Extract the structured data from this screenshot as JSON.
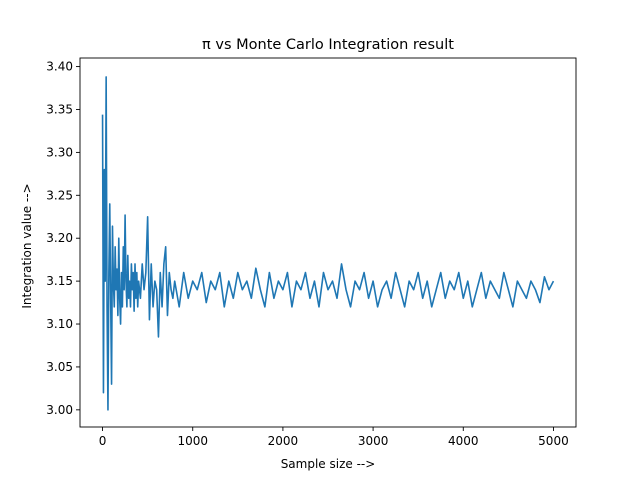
{
  "chart_data": {
    "type": "line",
    "title": "π vs Monte Carlo Integration result",
    "xlabel": "Sample size -->",
    "ylabel": "Integration value -->",
    "xlim": [
      -250,
      5250
    ],
    "ylim": [
      2.98,
      3.41
    ],
    "xticks": [
      0,
      1000,
      2000,
      3000,
      4000,
      5000
    ],
    "xtick_labels": [
      "0",
      "1000",
      "2000",
      "3000",
      "4000",
      "5000"
    ],
    "yticks": [
      3.0,
      3.05,
      3.1,
      3.15,
      3.2,
      3.25,
      3.3,
      3.35,
      3.4
    ],
    "ytick_labels": [
      "3.00",
      "3.05",
      "3.10",
      "3.15",
      "3.20",
      "3.25",
      "3.30",
      "3.35",
      "3.40"
    ],
    "grid": false,
    "legend": "none",
    "colors": {
      "series": "#1f77b4"
    },
    "series": [
      {
        "x": [
          0,
          10,
          20,
          30,
          40,
          50,
          60,
          70,
          80,
          90,
          100,
          110,
          120,
          130,
          140,
          150,
          160,
          170,
          180,
          190,
          200,
          210,
          220,
          230,
          240,
          250,
          260,
          270,
          280,
          290,
          300,
          310,
          320,
          330,
          340,
          350,
          360,
          370,
          380,
          390,
          400,
          420,
          440,
          460,
          480,
          500,
          520,
          540,
          560,
          580,
          600,
          620,
          640,
          660,
          680,
          700,
          720,
          740,
          760,
          780,
          800,
          850,
          900,
          950,
          1000,
          1050,
          1100,
          1150,
          1200,
          1250,
          1300,
          1350,
          1400,
          1450,
          1500,
          1550,
          1600,
          1650,
          1700,
          1750,
          1800,
          1850,
          1900,
          1950,
          2000,
          2050,
          2100,
          2150,
          2200,
          2250,
          2300,
          2350,
          2400,
          2450,
          2500,
          2550,
          2600,
          2650,
          2700,
          2750,
          2800,
          2850,
          2900,
          2950,
          3000,
          3050,
          3100,
          3150,
          3200,
          3250,
          3300,
          3350,
          3400,
          3450,
          3500,
          3550,
          3600,
          3650,
          3700,
          3750,
          3800,
          3850,
          3900,
          3950,
          4000,
          4050,
          4100,
          4150,
          4200,
          4250,
          4300,
          4350,
          4400,
          4450,
          4500,
          4550,
          4600,
          4650,
          4700,
          4750,
          4800,
          4850,
          4900,
          4950,
          5000
        ],
        "values": [
          3.344,
          3.02,
          3.28,
          3.15,
          3.388,
          3.12,
          3.0,
          3.16,
          3.24,
          3.13,
          3.03,
          3.214,
          3.15,
          3.12,
          3.19,
          3.14,
          3.164,
          3.11,
          3.2,
          3.13,
          3.1,
          3.16,
          3.12,
          3.19,
          3.14,
          3.227,
          3.15,
          3.12,
          3.18,
          3.13,
          3.15,
          3.12,
          3.17,
          3.14,
          3.16,
          3.115,
          3.17,
          3.13,
          3.16,
          3.12,
          3.15,
          3.13,
          3.17,
          3.14,
          3.16,
          3.225,
          3.105,
          3.17,
          3.12,
          3.15,
          3.14,
          3.085,
          3.16,
          3.12,
          3.17,
          3.19,
          3.11,
          3.16,
          3.14,
          3.13,
          3.15,
          3.12,
          3.16,
          3.13,
          3.15,
          3.14,
          3.16,
          3.125,
          3.15,
          3.14,
          3.16,
          3.12,
          3.15,
          3.13,
          3.16,
          3.14,
          3.15,
          3.13,
          3.165,
          3.14,
          3.12,
          3.16,
          3.13,
          3.15,
          3.14,
          3.16,
          3.12,
          3.15,
          3.14,
          3.16,
          3.13,
          3.15,
          3.12,
          3.16,
          3.14,
          3.15,
          3.13,
          3.17,
          3.14,
          3.12,
          3.15,
          3.14,
          3.16,
          3.13,
          3.15,
          3.12,
          3.14,
          3.15,
          3.13,
          3.16,
          3.14,
          3.12,
          3.15,
          3.14,
          3.16,
          3.13,
          3.15,
          3.12,
          3.14,
          3.16,
          3.13,
          3.15,
          3.14,
          3.16,
          3.13,
          3.15,
          3.12,
          3.14,
          3.16,
          3.13,
          3.15,
          3.14,
          3.13,
          3.16,
          3.14,
          3.12,
          3.15,
          3.14,
          3.13,
          3.15,
          3.14,
          3.125,
          3.155,
          3.14,
          3.15
        ]
      }
    ]
  }
}
